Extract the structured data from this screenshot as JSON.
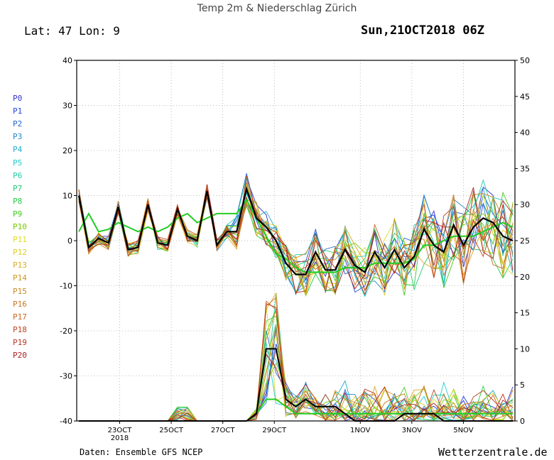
{
  "header": {
    "title": "Temp 2m & Niederschlag Zürich",
    "location": "Lat: 47 Lon: 9",
    "run": "Sun,21OCT2018 06Z"
  },
  "footer": {
    "source": "Daten: Ensemble GFS NCEP",
    "site": "Wetterzentrale.de"
  },
  "colors": {
    "control": "#000000",
    "mean": "#22cc22",
    "grid": "#aaaaaa"
  },
  "legend": [
    {
      "label": "P0",
      "color": "#3333cc"
    },
    {
      "label": "P1",
      "color": "#2244dd"
    },
    {
      "label": "P2",
      "color": "#2266cc"
    },
    {
      "label": "P3",
      "color": "#2288cc"
    },
    {
      "label": "P4",
      "color": "#22aacc"
    },
    {
      "label": "P5",
      "color": "#22cccc"
    },
    {
      "label": "P6",
      "color": "#22ccaa"
    },
    {
      "label": "P7",
      "color": "#22cc77"
    },
    {
      "label": "P8",
      "color": "#22cc44"
    },
    {
      "label": "P9",
      "color": "#44cc22"
    },
    {
      "label": "P10",
      "color": "#77cc00"
    },
    {
      "label": "P11",
      "color": "#dddd22"
    },
    {
      "label": "P12",
      "color": "#ddcc22"
    },
    {
      "label": "P13",
      "color": "#ddaa22"
    },
    {
      "label": "P14",
      "color": "#cc9922"
    },
    {
      "label": "P15",
      "color": "#cc8822"
    },
    {
      "label": "P16",
      "color": "#cc7722"
    },
    {
      "label": "P17",
      "color": "#cc6622"
    },
    {
      "label": "P18",
      "color": "#bb4422"
    },
    {
      "label": "P19",
      "color": "#bb3322"
    },
    {
      "label": "P20",
      "color": "#aa2222"
    }
  ],
  "chart_data": {
    "type": "line",
    "xlabels": [
      "23OCT",
      "25OCT",
      "27OCT",
      "29OCT",
      "1NOV",
      "3NOV",
      "5NOV"
    ],
    "xlabel_year": "2018",
    "xlim": [
      0,
      102
    ],
    "x_label_steps": [
      10,
      22,
      34,
      46,
      66,
      78,
      90
    ],
    "y_left": {
      "ticks": [
        -40,
        -30,
        -20,
        -10,
        0,
        10,
        20,
        30,
        40
      ],
      "range": [
        -40,
        40
      ]
    },
    "y_right": {
      "ticks": [
        0,
        5,
        10,
        15,
        20,
        25,
        30,
        35,
        40,
        45,
        50
      ],
      "range": [
        0,
        50
      ]
    },
    "temperature": {
      "control": [
        10,
        -1.5,
        0.5,
        -0.5,
        7.5,
        -2,
        -1.5,
        8,
        -0.5,
        -1,
        7,
        1,
        0,
        11,
        -1,
        2,
        2,
        11.5,
        5,
        3,
        0,
        -5,
        -7.5,
        -7.5,
        -2.5,
        -6.5,
        -6.5,
        -2,
        -5.5,
        -7,
        -2.5,
        -6,
        -2,
        -6,
        -3.5,
        2.5,
        -1,
        -2.5,
        3.5,
        -1,
        3,
        5,
        4,
        1,
        0
      ],
      "mean": [
        2,
        6,
        2,
        2.5,
        4,
        3,
        2,
        3,
        2,
        3,
        5,
        6,
        4,
        5,
        6,
        6,
        6,
        9,
        5,
        1,
        -3,
        -4,
        -6,
        -7,
        -7,
        -7,
        -7,
        -6,
        -6,
        -6,
        -5,
        -5,
        -5,
        -5,
        -4,
        -1,
        -1,
        0,
        1,
        1,
        1,
        2,
        3,
        4,
        3
      ]
    },
    "precipitation": {
      "control": [
        0,
        0,
        0,
        0,
        0,
        0,
        0,
        0,
        0,
        0,
        0,
        0,
        0,
        0,
        0,
        0,
        0,
        0,
        1,
        10,
        10,
        3,
        2,
        3,
        2,
        2,
        2,
        1,
        0,
        0,
        0,
        0,
        0,
        1,
        1,
        1,
        1,
        0,
        0,
        0,
        0,
        0,
        0,
        0,
        0
      ],
      "mean": [
        0,
        0,
        0,
        0,
        0,
        0,
        0,
        0,
        0,
        0,
        0,
        0,
        0,
        0,
        0,
        0,
        0,
        0,
        1,
        3,
        3,
        2,
        1,
        1,
        1,
        1,
        1,
        1,
        1,
        1,
        1,
        1,
        1,
        1,
        1,
        1,
        1,
        1,
        1,
        1,
        1,
        1,
        1,
        1,
        1
      ]
    }
  }
}
